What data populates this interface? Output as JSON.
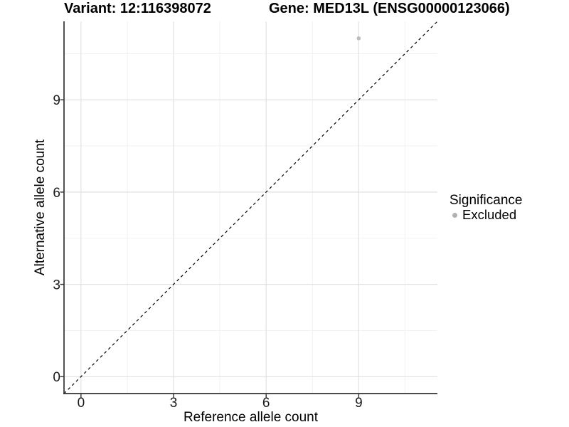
{
  "titles": {
    "variant": "Variant: 12:116398072",
    "gene": "Gene: MED13L (ENSG00000123066)"
  },
  "legend": {
    "title": "Significance",
    "items": [
      {
        "label": "Excluded",
        "symbol": "dot",
        "color": "#b0b0b0"
      }
    ]
  },
  "chart_data": {
    "type": "scatter",
    "title_left": "Variant: 12:116398072",
    "title_right": "Gene: MED13L (ENSG00000123066)",
    "xlabel": "Reference allele count",
    "ylabel": "Alternative allele count",
    "xlim": [
      -0.55,
      11.55
    ],
    "ylim": [
      -0.55,
      11.55
    ],
    "x_ticks": [
      0,
      3,
      6,
      9
    ],
    "y_ticks": [
      0,
      3,
      6,
      9
    ],
    "x_minor_ticks": [
      1.5,
      4.5,
      7.5,
      10.5
    ],
    "y_minor_ticks": [
      1.5,
      4.5,
      7.5,
      10.5
    ],
    "grid": "major+minor",
    "legend_title": "Significance",
    "legend_position": "right",
    "series": [
      {
        "name": "Excluded",
        "color": "#bdbdbd",
        "points": [
          {
            "x": 9,
            "y": 11
          }
        ]
      }
    ],
    "reference_line": {
      "type": "identity",
      "slope": 1,
      "intercept": 0,
      "style": "dashed",
      "color": "#000000"
    }
  },
  "colors": {
    "background": "#ffffff",
    "axis_line": "#333333",
    "grid_major": "#e2e2e2",
    "grid_minor": "#f1f1f1",
    "tick_text": "#1a1a1a",
    "point": "#bdbdbd",
    "legend_dot": "#b0b0b0"
  }
}
